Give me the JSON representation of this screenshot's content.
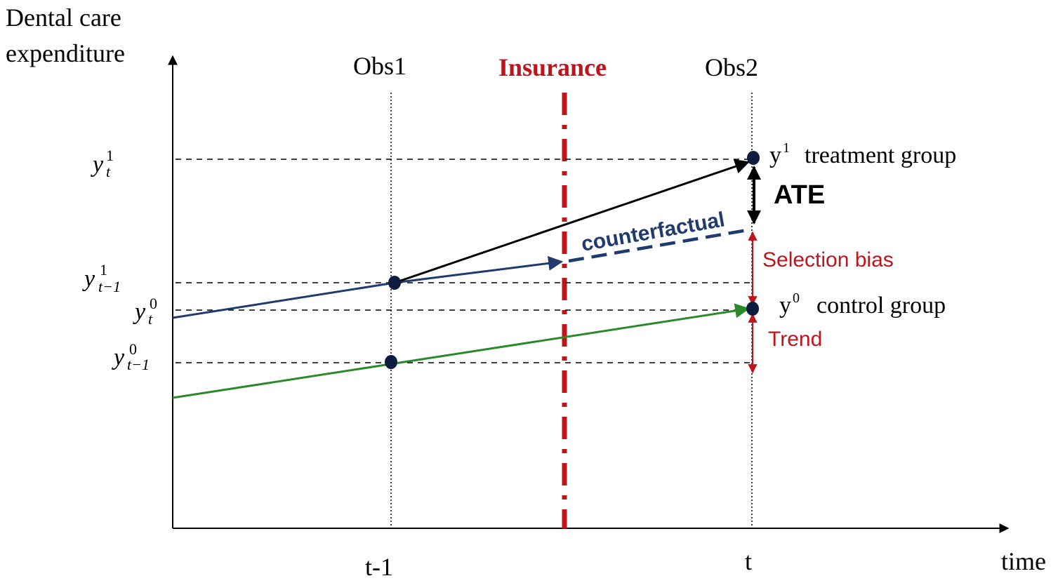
{
  "y_axis_label": [
    "Dental care",
    "expenditure"
  ],
  "x_axis_label": "time",
  "x_ticks": {
    "t_minus_1": "t-1",
    "t": "t"
  },
  "columns": {
    "obs1": "Obs1",
    "insurance": "Insurance",
    "obs2": "Obs2"
  },
  "y_ticks": {
    "y_t_1": {
      "base": "y",
      "sup": "1",
      "sub": "t"
    },
    "y_tm1_1": {
      "base": "y",
      "sup": "1",
      "sub": "t−1"
    },
    "y_t_0": {
      "base": "y",
      "sup": "0",
      "sub": "t"
    },
    "y_tm1_0": {
      "base": "y",
      "sup": "0",
      "sub": "t−1"
    }
  },
  "annotations": {
    "treatment": {
      "base": "y",
      "sup": "1",
      "label": "treatment group"
    },
    "control": {
      "base": "y",
      "sup": "0",
      "label": "control group"
    },
    "ate": "ATE",
    "counterfactual": "counterfactual",
    "selection_bias": "Selection bias",
    "trend": "Trend"
  },
  "colors": {
    "axis": "#000000",
    "treatment_line": "#000000",
    "pre_treatment_line": "#1f3a6e",
    "counterfactual_line": "#1f3a6e",
    "control_line": "#2a8a2a",
    "insurance_line": "#c0141c",
    "bias_arrow": "#c0141c",
    "points": "#0d1b3e"
  }
}
